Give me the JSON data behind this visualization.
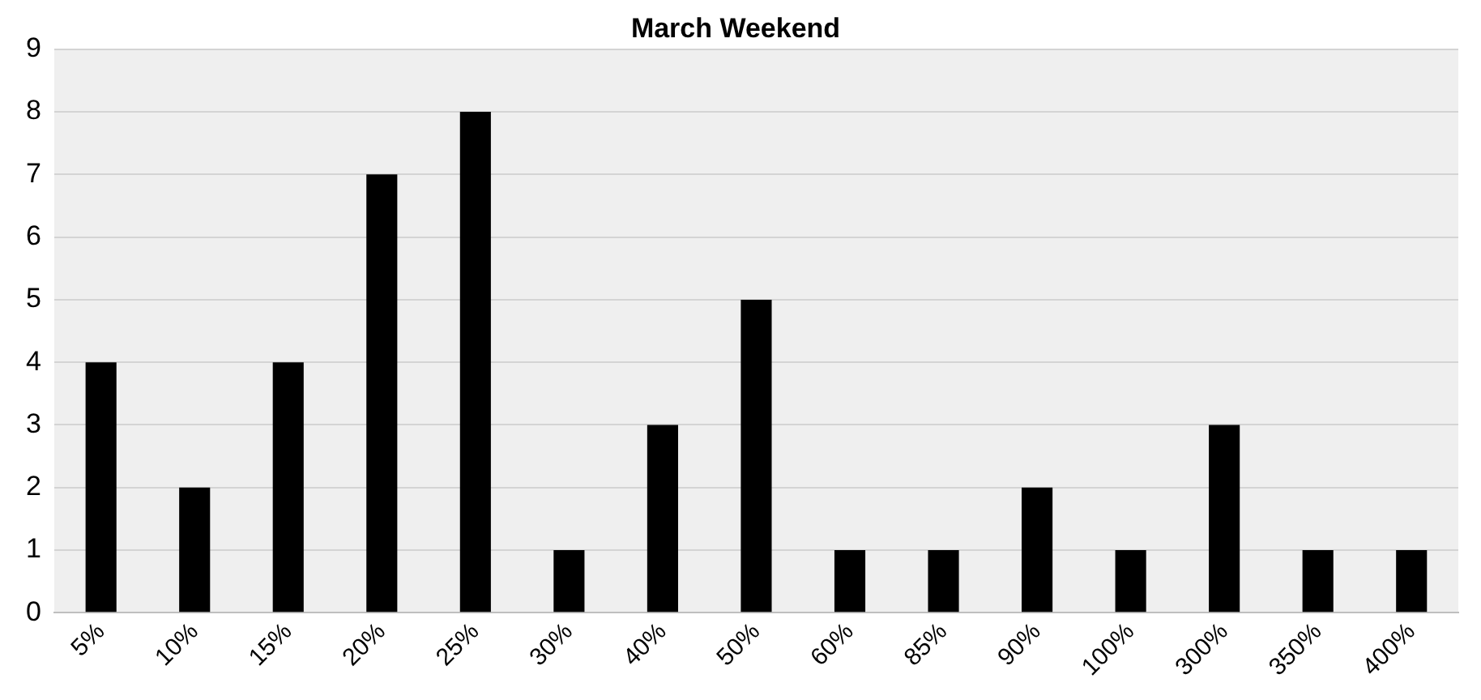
{
  "chart_data": {
    "type": "bar",
    "title": "March Weekend",
    "categories": [
      "5%",
      "10%",
      "15%",
      "20%",
      "25%",
      "30%",
      "40%",
      "50%",
      "60%",
      "85%",
      "90%",
      "100%",
      "300%",
      "350%",
      "400%"
    ],
    "values": [
      4,
      2,
      4,
      7,
      8,
      1,
      3,
      5,
      1,
      1,
      2,
      1,
      3,
      1,
      1
    ],
    "color": "#000000",
    "ylim": [
      0,
      9
    ],
    "yticks": [
      0,
      1,
      2,
      3,
      4,
      5,
      6,
      7,
      8,
      9
    ],
    "grid": "y",
    "legend": false
  }
}
